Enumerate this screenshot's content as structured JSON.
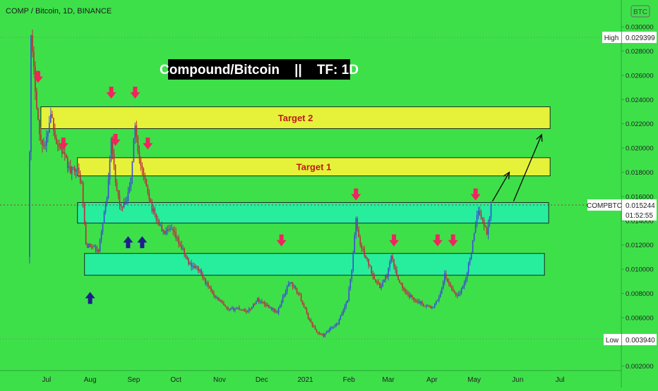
{
  "header": {
    "symbol_line": "COMP / Bitcoin, 1D, BINANCE",
    "currency_badge": "BTC"
  },
  "colors": {
    "background": "#3ee04a",
    "up_candle": "#3b4bd6",
    "down_candle": "#c0283b",
    "target_zone": "#e6f23a",
    "support_zone": "#27ee9c",
    "arrow_down": "#f0245e",
    "arrow_up": "#1e1e8c",
    "axis_text": "#222222"
  },
  "chart_data": {
    "type": "candlestick",
    "title": "Compound/Bitcoin    ||    TF: 1D",
    "y_scale": "linear",
    "ylim": [
      0.0014,
      0.0314
    ],
    "y_ticks": [
      0.002,
      0.004,
      0.006,
      0.008,
      0.01,
      0.012,
      0.014,
      0.016,
      0.018,
      0.02,
      0.022,
      0.024,
      0.026,
      0.028,
      0.03
    ],
    "x_ticks": [
      "Jul",
      "Aug",
      "Sep",
      "Oct",
      "Nov",
      "Dec",
      "2021",
      "Feb",
      "Mar",
      "Apr",
      "May",
      "Jun",
      "Jul"
    ],
    "grid": false,
    "price_path": [
      [
        "2020-06-18",
        0.011
      ],
      [
        "2020-06-20",
        0.029
      ],
      [
        "2020-06-23",
        0.025
      ],
      [
        "2020-06-26",
        0.021
      ],
      [
        "2020-06-30",
        0.02
      ],
      [
        "2020-07-04",
        0.023
      ],
      [
        "2020-07-08",
        0.0205
      ],
      [
        "2020-07-13",
        0.0195
      ],
      [
        "2020-07-18",
        0.018
      ],
      [
        "2020-07-22",
        0.0185
      ],
      [
        "2020-07-26",
        0.017
      ],
      [
        "2020-07-29",
        0.012
      ],
      [
        "2020-08-03",
        0.0118
      ],
      [
        "2020-08-07",
        0.0114
      ],
      [
        "2020-08-10",
        0.014
      ],
      [
        "2020-08-13",
        0.016
      ],
      [
        "2020-08-16",
        0.021
      ],
      [
        "2020-08-19",
        0.017
      ],
      [
        "2020-08-23",
        0.015
      ],
      [
        "2020-08-27",
        0.0155
      ],
      [
        "2020-08-30",
        0.0175
      ],
      [
        "2020-09-02",
        0.022
      ],
      [
        "2020-09-05",
        0.019
      ],
      [
        "2020-09-08",
        0.0175
      ],
      [
        "2020-09-11",
        0.0165
      ],
      [
        "2020-09-14",
        0.015
      ],
      [
        "2020-09-18",
        0.014
      ],
      [
        "2020-09-22",
        0.013
      ],
      [
        "2020-09-28",
        0.0132
      ],
      [
        "2020-10-04",
        0.012
      ],
      [
        "2020-10-10",
        0.0105
      ],
      [
        "2020-10-17",
        0.01
      ],
      [
        "2020-10-24",
        0.0085
      ],
      [
        "2020-10-31",
        0.0075
      ],
      [
        "2020-11-07",
        0.0066
      ],
      [
        "2020-11-14",
        0.0068
      ],
      [
        "2020-11-21",
        0.0065
      ],
      [
        "2020-11-28",
        0.0075
      ],
      [
        "2020-12-05",
        0.007
      ],
      [
        "2020-12-12",
        0.0064
      ],
      [
        "2020-12-17",
        0.008
      ],
      [
        "2020-12-21",
        0.009
      ],
      [
        "2020-12-28",
        0.0078
      ],
      [
        "2021-01-03",
        0.006
      ],
      [
        "2021-01-09",
        0.0048
      ],
      [
        "2021-01-14",
        0.0045
      ],
      [
        "2021-01-18",
        0.005
      ],
      [
        "2021-01-24",
        0.0055
      ],
      [
        "2021-01-31",
        0.0075
      ],
      [
        "2021-02-03",
        0.01
      ],
      [
        "2021-02-06",
        0.014
      ],
      [
        "2021-02-09",
        0.012
      ],
      [
        "2021-02-13",
        0.011
      ],
      [
        "2021-02-18",
        0.0095
      ],
      [
        "2021-02-23",
        0.0085
      ],
      [
        "2021-02-28",
        0.0095
      ],
      [
        "2021-03-03",
        0.011
      ],
      [
        "2021-03-07",
        0.0095
      ],
      [
        "2021-03-13",
        0.008
      ],
      [
        "2021-03-20",
        0.0075
      ],
      [
        "2021-03-27",
        0.007
      ],
      [
        "2021-04-02",
        0.0068
      ],
      [
        "2021-04-07",
        0.008
      ],
      [
        "2021-04-10",
        0.0095
      ],
      [
        "2021-04-14",
        0.0085
      ],
      [
        "2021-04-19",
        0.0078
      ],
      [
        "2021-04-23",
        0.0085
      ],
      [
        "2021-04-26",
        0.0098
      ],
      [
        "2021-04-29",
        0.0115
      ],
      [
        "2021-05-02",
        0.0135
      ],
      [
        "2021-05-04",
        0.015
      ],
      [
        "2021-05-07",
        0.014
      ],
      [
        "2021-05-10",
        0.013
      ],
      [
        "2021-05-13",
        0.0152
      ]
    ],
    "price_labels": {
      "high": {
        "label": "High",
        "value": "0.029399"
      },
      "low": {
        "label": "Low",
        "value": "0.003940"
      },
      "current": {
        "label": "COMPBTC",
        "value": "0.015244",
        "countdown": "01:52:55"
      }
    },
    "zones": [
      {
        "kind": "target",
        "label": "Target 2",
        "y_range": [
          0.0216,
          0.0234
        ],
        "x_range": [
          "2020-06-27",
          "2021-06-24"
        ]
      },
      {
        "kind": "target",
        "label": "Target 1",
        "y_range": [
          0.0177,
          0.0192
        ],
        "x_range": [
          "2020-07-23",
          "2021-06-24"
        ]
      },
      {
        "kind": "support",
        "label": "",
        "y_range": [
          0.0138,
          0.0155
        ],
        "x_range": [
          "2020-07-23",
          "2021-06-23"
        ]
      },
      {
        "kind": "support",
        "label": "",
        "y_range": [
          0.0095,
          0.0113
        ],
        "x_range": [
          "2020-07-28",
          "2021-06-20"
        ]
      }
    ],
    "down_arrows": [
      [
        "2020-06-25",
        0.0259
      ],
      [
        "2020-07-13",
        0.0204
      ],
      [
        "2020-08-16",
        0.0246
      ],
      [
        "2020-08-19",
        0.0207
      ],
      [
        "2020-09-02",
        0.0246
      ],
      [
        "2020-09-11",
        0.0204
      ],
      [
        "2020-12-15",
        0.0124
      ],
      [
        "2021-02-06",
        0.0162
      ],
      [
        "2021-03-05",
        0.0124
      ],
      [
        "2021-04-05",
        0.0124
      ],
      [
        "2021-04-16",
        0.0124
      ],
      [
        "2021-05-02",
        0.0162
      ]
    ],
    "up_arrows": [
      [
        "2020-08-01",
        0.0076
      ],
      [
        "2020-08-28",
        0.0122
      ],
      [
        "2020-09-07",
        0.0122
      ]
    ],
    "projection_arrows": [
      [
        [
          "2021-05-14",
          0.0156
        ],
        [
          "2021-05-26",
          0.018
        ]
      ],
      [
        [
          "2021-05-29",
          0.0156
        ],
        [
          "2021-06-18",
          0.0211
        ]
      ]
    ]
  }
}
